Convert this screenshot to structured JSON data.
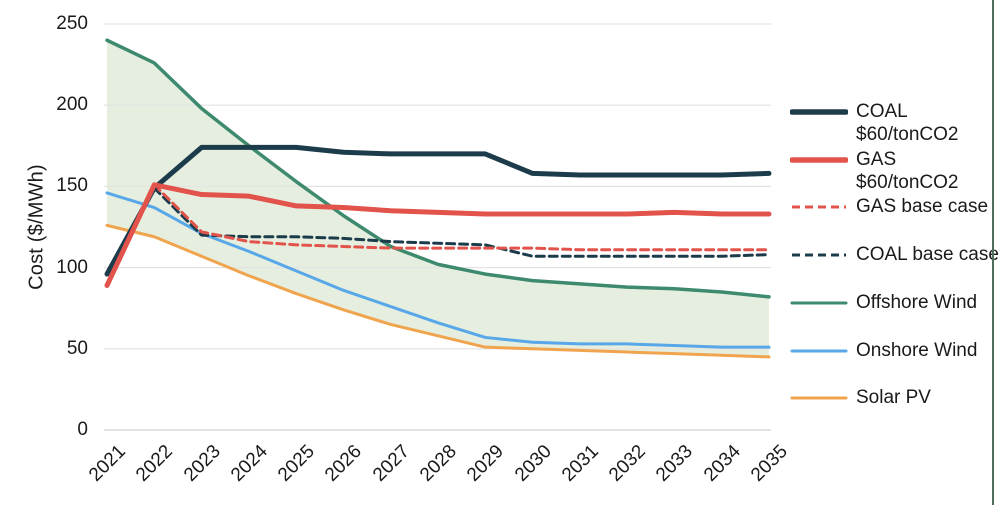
{
  "chart_data": {
    "type": "line",
    "title": "",
    "ylabel": "Cost ($/MWh)",
    "ylim": [
      0,
      250
    ],
    "yticks": [
      0,
      50,
      100,
      150,
      200,
      250
    ],
    "x": [
      2021,
      2022,
      2023,
      2024,
      2025,
      2026,
      2027,
      2028,
      2029,
      2030,
      2031,
      2032,
      2033,
      2034,
      2035
    ],
    "grid": "horizontal",
    "legend_position": "right",
    "colors": {
      "coal": "#1c3c4c",
      "gas": "#e1534b",
      "offshore_wind": "#3e8a6e",
      "onshore_wind": "#58a7e8",
      "solar_pv": "#f0a44d",
      "area_fill": "#e6efdf",
      "gridline": "#e3e3e3",
      "axis_line": "#d2d2d2",
      "text": "#1a1a1a",
      "right_edge_line": "#4e6f5e"
    },
    "series": [
      {
        "name": "COAL $60/tonCO2",
        "color": "#1c3c4c",
        "style": "solid",
        "width": 5,
        "values": [
          96,
          149,
          174,
          174,
          174,
          171,
          170,
          170,
          170,
          158,
          157,
          157,
          157,
          157,
          158
        ]
      },
      {
        "name": "GAS $60/tonCO2",
        "color": "#e1534b",
        "style": "solid",
        "width": 5,
        "values": [
          89,
          151,
          145,
          144,
          138,
          137,
          135,
          134,
          133,
          133,
          133,
          133,
          134,
          133,
          133
        ]
      },
      {
        "name": "GAS base case",
        "color": "#e1534b",
        "style": "dashed",
        "width": 3,
        "values": [
          null,
          151,
          122,
          116,
          114,
          113,
          112,
          112,
          112,
          112,
          111,
          111,
          111,
          111,
          111
        ]
      },
      {
        "name": "COAL base case",
        "color": "#1c3c4c",
        "style": "dashed",
        "width": 3,
        "values": [
          null,
          149,
          120,
          119,
          119,
          118,
          116,
          115,
          114,
          107,
          107,
          107,
          107,
          107,
          108
        ]
      },
      {
        "name": "Offshore Wind",
        "color": "#3e8a6e",
        "style": "solid",
        "width": 3.5,
        "values": [
          240,
          226,
          198,
          175,
          153,
          132,
          113,
          102,
          96,
          92,
          90,
          88,
          87,
          85,
          82
        ]
      },
      {
        "name": "Onshore Wind",
        "color": "#58a7e8",
        "style": "solid",
        "width": 3,
        "values": [
          146,
          137,
          121,
          110,
          98,
          86,
          76,
          66,
          57,
          54,
          53,
          53,
          52,
          51,
          51
        ]
      },
      {
        "name": "Solar PV",
        "color": "#f0a44d",
        "style": "solid",
        "width": 3,
        "values": [
          126,
          119,
          107,
          95,
          84,
          74,
          65,
          58,
          51,
          50,
          49,
          48,
          47,
          46,
          45
        ]
      }
    ],
    "area_fill": {
      "between": [
        "Offshore Wind",
        "Solar PV"
      ],
      "color": "#e6efdf"
    },
    "legend": [
      {
        "series": "COAL $60/tonCO2",
        "lines": [
          "COAL",
          "$60/tonCO2"
        ]
      },
      {
        "series": "GAS $60/tonCO2",
        "lines": [
          "GAS",
          "$60/tonCO2"
        ]
      },
      {
        "series": "GAS base case",
        "lines": [
          "GAS base case"
        ]
      },
      {
        "series": "COAL base case",
        "lines": [
          "COAL base case"
        ]
      },
      {
        "series": "Offshore Wind",
        "lines": [
          "Offshore Wind"
        ]
      },
      {
        "series": "Onshore Wind",
        "lines": [
          "Onshore Wind"
        ]
      },
      {
        "series": "Solar PV",
        "lines": [
          "Solar PV"
        ]
      }
    ]
  }
}
